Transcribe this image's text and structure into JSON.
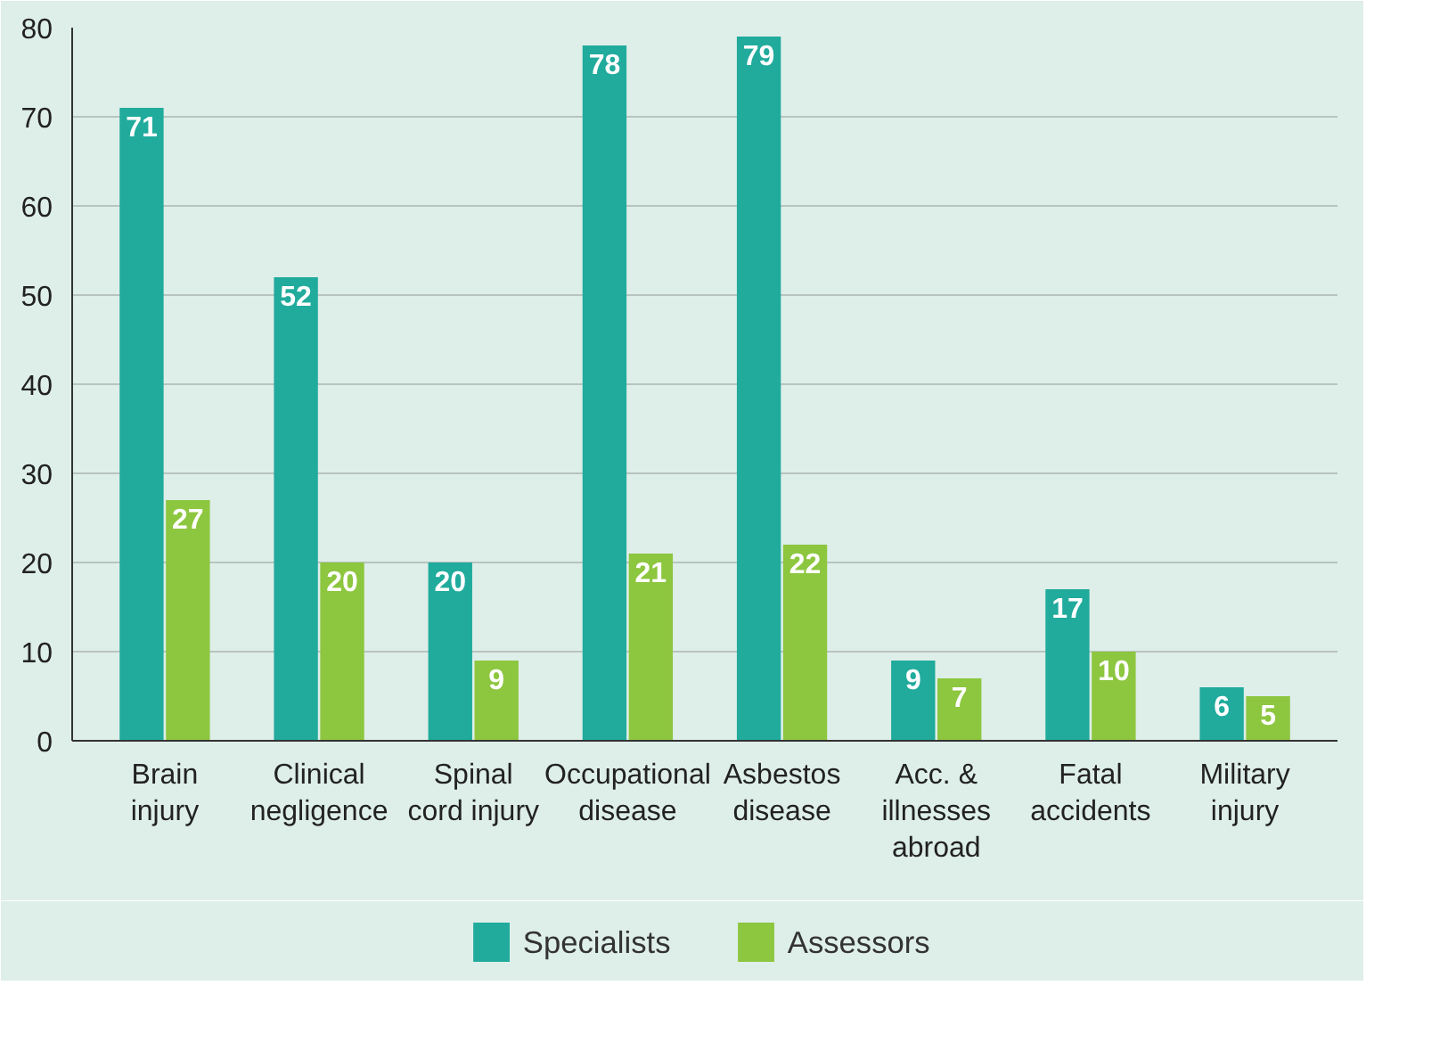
{
  "chart_data": {
    "type": "bar",
    "categories": [
      "Brain\ninjury",
      "Clinical\nnegligence",
      "Spinal\ncord injury",
      "Occupational\ndisease",
      "Asbestos\ndisease",
      "Acc. &\nillnesses\nabroad",
      "Fatal\naccidents",
      "Military\ninjury"
    ],
    "series": [
      {
        "name": "Specialists",
        "color": "#20ab9c",
        "values": [
          71,
          52,
          20,
          78,
          79,
          9,
          17,
          6
        ]
      },
      {
        "name": "Assessors",
        "color": "#8dc63f",
        "values": [
          27,
          20,
          9,
          21,
          22,
          7,
          10,
          5
        ]
      }
    ],
    "ylim": [
      0,
      80
    ],
    "yticks": [
      0,
      10,
      20,
      30,
      40,
      50,
      60,
      70,
      80
    ],
    "grid": "y",
    "legend": "bottom",
    "data_labels": true
  }
}
